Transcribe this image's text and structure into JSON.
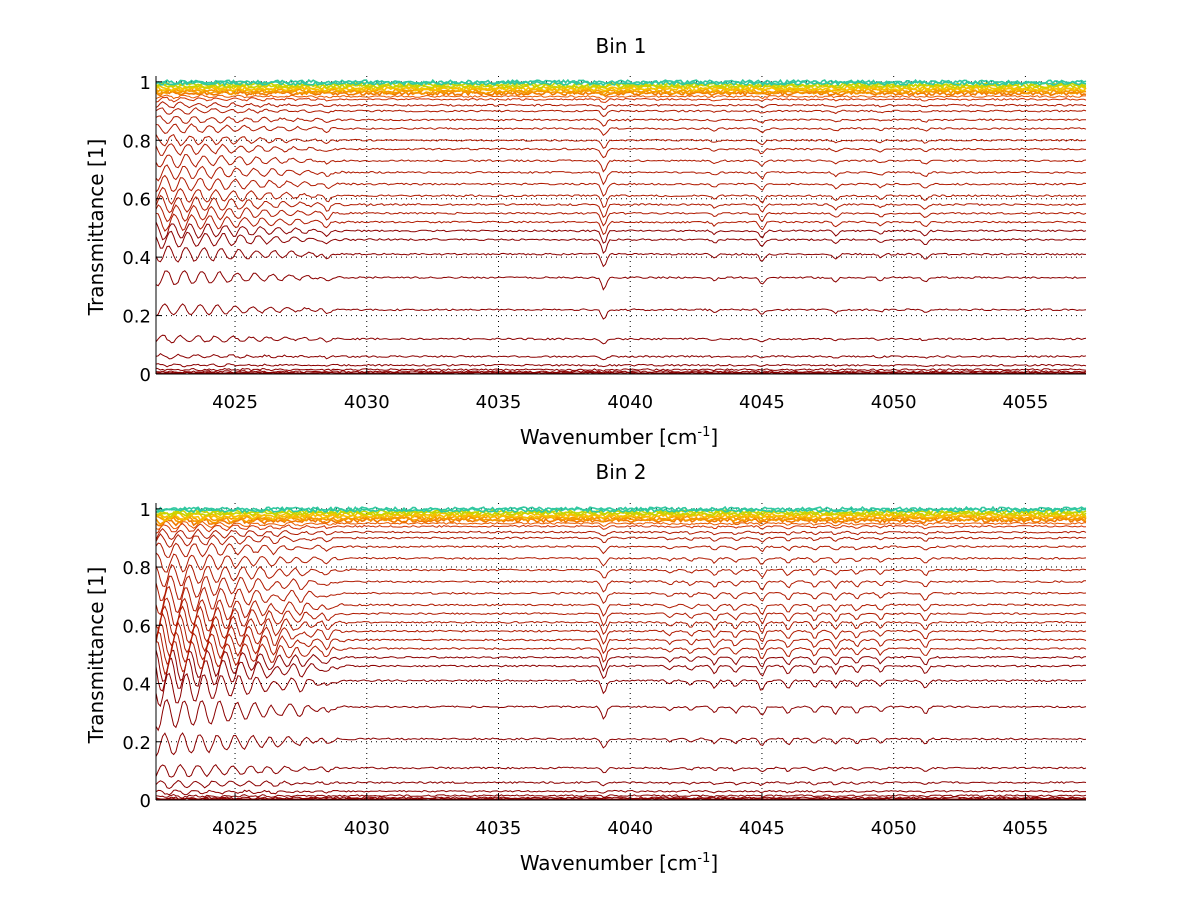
{
  "chart_data": [
    {
      "type": "line",
      "title": "Bin 1",
      "xlabel": "Wavenumber [cm",
      "xlabel_sup": "-1",
      "xlabel_end": "]",
      "ylabel": "Transmittance [1]",
      "xlim": [
        4022,
        4057.3
      ],
      "ylim": [
        0,
        1.02
      ],
      "xticks": [
        4025,
        4030,
        4035,
        4040,
        4045,
        4050,
        4055
      ],
      "xtick_labels": [
        "4025",
        "4030",
        "4035",
        "4040",
        "4045",
        "4050",
        "4055"
      ],
      "yticks": [
        0,
        0.2,
        0.4,
        0.6,
        0.8,
        1
      ],
      "ytick_labels": [
        "0",
        "0.2",
        "0.4",
        "0.6",
        "0.8",
        "1"
      ],
      "grid": true,
      "colormap": [
        "#8b0000",
        "#b01a00",
        "#d03000",
        "#e85a00",
        "#f07800",
        "#f59a00",
        "#f5c000",
        "#c8d400",
        "#30c8a0",
        "#00a0ff"
      ],
      "absorption_lines": [
        {
          "x": 4039.0,
          "strength": 1.0
        },
        {
          "x": 4045.0,
          "strength": 0.55
        },
        {
          "x": 4028.5,
          "strength": 0.4
        },
        {
          "x": 4047.8,
          "strength": 0.35
        },
        {
          "x": 4051.2,
          "strength": 0.35
        },
        {
          "x": 4043.2,
          "strength": 0.25
        },
        {
          "x": 4049.5,
          "strength": 0.25
        }
      ],
      "series_baselines": [
        1.0,
        0.995,
        0.99,
        0.985,
        0.98,
        0.975,
        0.97,
        0.965,
        0.96,
        0.95,
        0.94,
        0.92,
        0.9,
        0.87,
        0.84,
        0.8,
        0.77,
        0.73,
        0.69,
        0.65,
        0.61,
        0.58,
        0.55,
        0.52,
        0.49,
        0.46,
        0.41,
        0.33,
        0.22,
        0.12,
        0.06,
        0.03,
        0.015,
        0.008,
        0.004,
        0.002
      ]
    },
    {
      "type": "line",
      "title": "Bin 2",
      "xlabel": "Wavenumber [cm",
      "xlabel_sup": "-1",
      "xlabel_end": "]",
      "ylabel": "Transmittance [1]",
      "xlim": [
        4022,
        4057.3
      ],
      "ylim": [
        0,
        1.02
      ],
      "xticks": [
        4025,
        4030,
        4035,
        4040,
        4045,
        4050,
        4055
      ],
      "xtick_labels": [
        "4025",
        "4030",
        "4035",
        "4040",
        "4045",
        "4050",
        "4055"
      ],
      "yticks": [
        0,
        0.2,
        0.4,
        0.6,
        0.8,
        1
      ],
      "ytick_labels": [
        "0",
        "0.2",
        "0.4",
        "0.6",
        "0.8",
        "1"
      ],
      "grid": true,
      "colormap": [
        "#8b0000",
        "#b01a00",
        "#d03000",
        "#e85a00",
        "#f07800",
        "#f59a00",
        "#f5c000",
        "#c8d400",
        "#30c8a0",
        "#00a0ff"
      ],
      "absorption_lines": [
        {
          "x": 4039.0,
          "strength": 1.0
        },
        {
          "x": 4045.0,
          "strength": 0.8
        },
        {
          "x": 4043.2,
          "strength": 0.55
        },
        {
          "x": 4044.0,
          "strength": 0.5
        },
        {
          "x": 4046.0,
          "strength": 0.6
        },
        {
          "x": 4047.0,
          "strength": 0.55
        },
        {
          "x": 4047.8,
          "strength": 0.6
        },
        {
          "x": 4048.6,
          "strength": 0.5
        },
        {
          "x": 4049.5,
          "strength": 0.45
        },
        {
          "x": 4051.2,
          "strength": 0.6
        },
        {
          "x": 4042.3,
          "strength": 0.35
        },
        {
          "x": 4041.5,
          "strength": 0.3
        },
        {
          "x": 4028.5,
          "strength": 0.45
        },
        {
          "x": 4027.5,
          "strength": 0.35
        },
        {
          "x": 4026.5,
          "strength": 0.4
        }
      ],
      "series_baselines": [
        1.0,
        0.995,
        0.99,
        0.985,
        0.98,
        0.975,
        0.97,
        0.965,
        0.96,
        0.95,
        0.94,
        0.92,
        0.9,
        0.87,
        0.83,
        0.79,
        0.75,
        0.71,
        0.67,
        0.64,
        0.61,
        0.58,
        0.55,
        0.52,
        0.49,
        0.46,
        0.41,
        0.32,
        0.21,
        0.11,
        0.06,
        0.03,
        0.015,
        0.008,
        0.004,
        0.002
      ]
    }
  ]
}
